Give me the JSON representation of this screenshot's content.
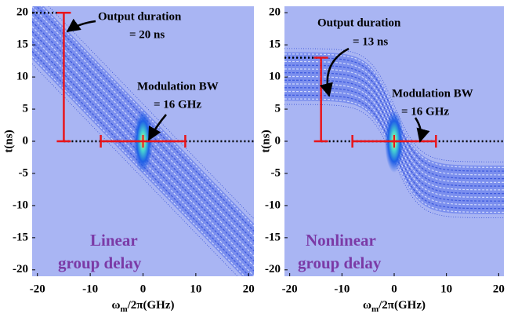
{
  "chart_data": [
    {
      "type": "spectrogram",
      "xlabel": [
        "ω",
        "m",
        "/2π(GHz)"
      ],
      "ylabel": "t(ns)",
      "xlim": [
        -21,
        21
      ],
      "ylim": [
        -21,
        21
      ],
      "xticks": [
        -20,
        -10,
        0,
        10,
        20
      ],
      "yticks": [
        20,
        15,
        10,
        5,
        0,
        -5,
        -10,
        -15,
        -20
      ],
      "background": "#a9b5f3",
      "delay": "linear",
      "annotations": {
        "duration": [
          "Output duration",
          "= 20 ns"
        ],
        "bandwidth": [
          "Modulation BW",
          "= 16 GHz"
        ],
        "label": [
          "Linear",
          "group delay"
        ]
      },
      "duration_marker": {
        "x": -15,
        "t": [
          0,
          20
        ]
      },
      "bandwidth_marker": {
        "t": 0,
        "x": [
          -8,
          8
        ]
      }
    },
    {
      "type": "spectrogram",
      "xlabel": [
        "ω",
        "m",
        "/2π(GHz)"
      ],
      "ylabel": "t(ns)",
      "xlim": [
        -21,
        21
      ],
      "ylim": [
        -21,
        21
      ],
      "xticks": [
        -20,
        -10,
        0,
        10,
        20
      ],
      "yticks": [
        20,
        15,
        10,
        5,
        0,
        -5,
        -10,
        -15,
        -20
      ],
      "background": "#a9b5f3",
      "delay": "nonlinear",
      "annotations": {
        "duration": [
          "Output duration",
          "= 13 ns"
        ],
        "bandwidth": [
          "Modulation BW",
          "= 16 GHz"
        ],
        "label": [
          "Nonlinear",
          "group delay"
        ]
      },
      "duration_marker": {
        "x": -14,
        "t": [
          0,
          13
        ]
      },
      "bandwidth_marker": {
        "t": 0,
        "x": [
          -8,
          8
        ]
      }
    }
  ]
}
